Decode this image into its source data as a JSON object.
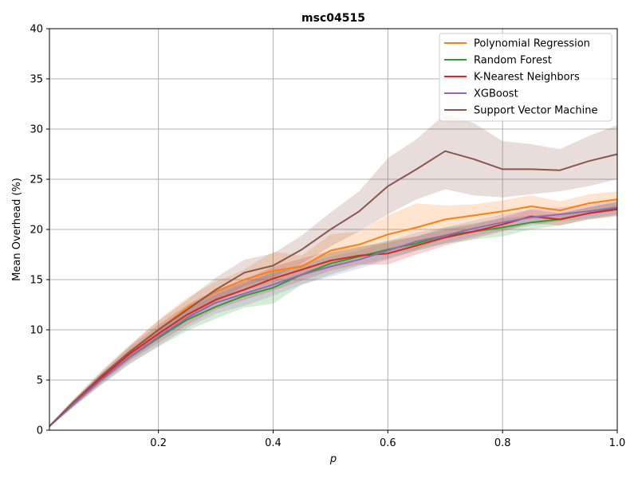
{
  "chart_data": {
    "type": "line",
    "title": "msc04515",
    "xlabel": "p",
    "ylabel": "Mean Overhead (%)",
    "xlim": [
      0.01,
      1.0
    ],
    "ylim": [
      0,
      40
    ],
    "xticks": [
      0.2,
      0.4,
      0.6,
      0.8,
      1.0
    ],
    "xtick_labels": [
      "0.2",
      "0.4",
      "0.6",
      "0.8",
      "1.0"
    ],
    "yticks": [
      0,
      5,
      10,
      15,
      20,
      25,
      30,
      35,
      40
    ],
    "ytick_labels": [
      "0",
      "5",
      "10",
      "15",
      "20",
      "25",
      "30",
      "35",
      "40"
    ],
    "grid": true,
    "legend_position": "top-right",
    "x": [
      0.01,
      0.05,
      0.1,
      0.15,
      0.2,
      0.25,
      0.3,
      0.35,
      0.4,
      0.45,
      0.5,
      0.55,
      0.6,
      0.65,
      0.7,
      0.75,
      0.8,
      0.85,
      0.9,
      0.95,
      1.0
    ],
    "series": [
      {
        "name": "Polynomial Regression",
        "color": "#ff7f0e",
        "values": [
          0.4,
          2.6,
          5.2,
          7.7,
          10.0,
          12.2,
          13.8,
          15.0,
          15.9,
          16.3,
          17.9,
          18.5,
          19.5,
          20.2,
          21.0,
          21.4,
          21.8,
          22.3,
          21.9,
          22.6,
          23.0
        ],
        "lower": [
          0.3,
          2.3,
          4.7,
          7.0,
          9.0,
          11.2,
          12.8,
          14.0,
          14.6,
          15.3,
          16.4,
          17.2,
          17.6,
          18.0,
          19.2,
          20.2,
          20.8,
          21.2,
          21.0,
          21.8,
          22.2
        ],
        "upper": [
          0.5,
          2.9,
          5.7,
          8.4,
          11.0,
          13.2,
          14.8,
          16.0,
          17.8,
          17.4,
          19.5,
          19.8,
          21.4,
          22.6,
          22.4,
          22.5,
          22.9,
          23.4,
          22.8,
          23.5,
          23.8
        ]
      },
      {
        "name": "Random Forest",
        "color": "#2ca02c",
        "values": [
          0.4,
          2.5,
          5.0,
          7.3,
          9.2,
          11.0,
          12.3,
          13.4,
          14.2,
          15.5,
          16.6,
          17.3,
          18.0,
          18.6,
          19.4,
          19.8,
          20.2,
          20.7,
          21.0,
          21.6,
          22.1
        ],
        "lower": [
          0.3,
          2.2,
          4.5,
          6.6,
          8.3,
          9.9,
          11.1,
          12.2,
          12.6,
          14.5,
          15.5,
          16.4,
          17.1,
          17.9,
          18.6,
          19.0,
          19.3,
          20.0,
          20.4,
          21.0,
          21.4
        ],
        "upper": [
          0.5,
          2.8,
          5.5,
          8.0,
          10.1,
          12.1,
          13.5,
          14.6,
          15.8,
          16.5,
          17.7,
          18.2,
          18.9,
          19.3,
          20.2,
          20.6,
          21.1,
          21.4,
          21.6,
          22.2,
          22.8
        ]
      },
      {
        "name": "K-Nearest Neighbors",
        "color": "#d62728",
        "values": [
          0.4,
          2.6,
          5.2,
          7.6,
          9.6,
          11.5,
          13.0,
          14.0,
          15.1,
          16.0,
          16.9,
          17.4,
          17.6,
          18.4,
          19.2,
          19.8,
          20.5,
          21.3,
          21.0,
          21.6,
          22.0
        ],
        "lower": [
          0.3,
          2.3,
          4.7,
          6.9,
          8.7,
          10.5,
          12.0,
          13.0,
          13.9,
          14.9,
          15.9,
          16.5,
          16.5,
          17.5,
          18.4,
          19.1,
          19.8,
          20.6,
          20.4,
          21.0,
          21.3
        ],
        "upper": [
          0.5,
          2.9,
          5.7,
          8.3,
          10.5,
          12.5,
          14.0,
          15.0,
          16.3,
          17.1,
          17.9,
          18.3,
          18.7,
          19.3,
          20.0,
          20.5,
          21.2,
          22.0,
          21.6,
          22.2,
          22.7
        ]
      },
      {
        "name": "XGBoost",
        "color": "#9467bd",
        "values": [
          0.4,
          2.5,
          5.0,
          7.3,
          9.3,
          11.2,
          12.7,
          13.6,
          14.5,
          15.5,
          16.3,
          17.0,
          17.9,
          18.8,
          19.4,
          20.1,
          20.7,
          21.2,
          21.5,
          21.8,
          22.2
        ],
        "lower": [
          0.3,
          2.2,
          4.5,
          6.6,
          8.4,
          10.2,
          11.6,
          12.4,
          13.4,
          14.5,
          15.3,
          16.1,
          17.0,
          17.9,
          18.6,
          19.3,
          19.9,
          20.4,
          20.8,
          21.1,
          21.5
        ],
        "upper": [
          0.5,
          2.8,
          5.5,
          8.0,
          10.2,
          12.2,
          13.8,
          14.8,
          15.6,
          16.5,
          17.3,
          17.9,
          18.8,
          19.7,
          20.2,
          20.9,
          21.5,
          22.0,
          22.2,
          22.5,
          22.9
        ]
      },
      {
        "name": "Support Vector Machine",
        "color": "#8c564b",
        "values": [
          0.4,
          2.7,
          5.4,
          7.8,
          10.0,
          12.0,
          14.0,
          15.7,
          16.4,
          18.0,
          20.0,
          21.8,
          24.3,
          26.0,
          27.8,
          27.0,
          26.0,
          26.0,
          25.9,
          26.8,
          27.5
        ],
        "lower": [
          0.3,
          2.4,
          4.9,
          7.1,
          9.1,
          11.0,
          12.8,
          14.4,
          15.2,
          16.6,
          18.3,
          19.8,
          21.5,
          23.0,
          24.0,
          23.4,
          23.2,
          23.5,
          23.8,
          24.3,
          25.0
        ],
        "upper": [
          0.5,
          3.0,
          5.9,
          8.5,
          10.9,
          13.0,
          15.2,
          17.0,
          17.6,
          19.4,
          21.7,
          23.8,
          27.1,
          29.0,
          31.5,
          30.6,
          28.8,
          28.5,
          28.0,
          29.3,
          30.4
        ]
      }
    ]
  }
}
